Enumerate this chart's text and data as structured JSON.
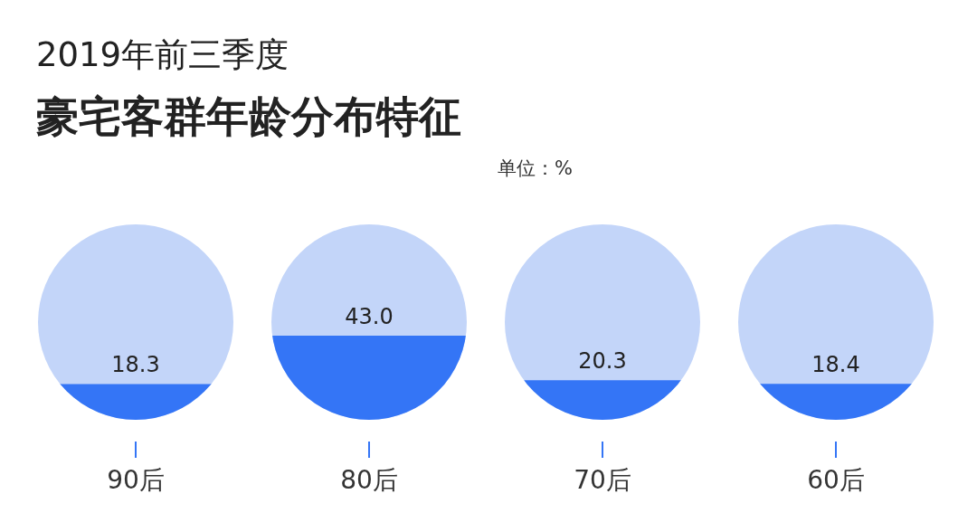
{
  "chart_data": {
    "type": "bar",
    "title": "2019年前三季度",
    "subtitle": "豪宅客群年龄分布特征",
    "annotations": [
      "单位：%"
    ],
    "categories": [
      "90后",
      "80后",
      "70后",
      "60后"
    ],
    "color": "#3475f6",
    "values": [
      18.3,
      43.0,
      20.3,
      18.4
    ],
    "value_labels": [
      "18.3",
      "43.0",
      "20.3",
      "18.4"
    ]
  }
}
